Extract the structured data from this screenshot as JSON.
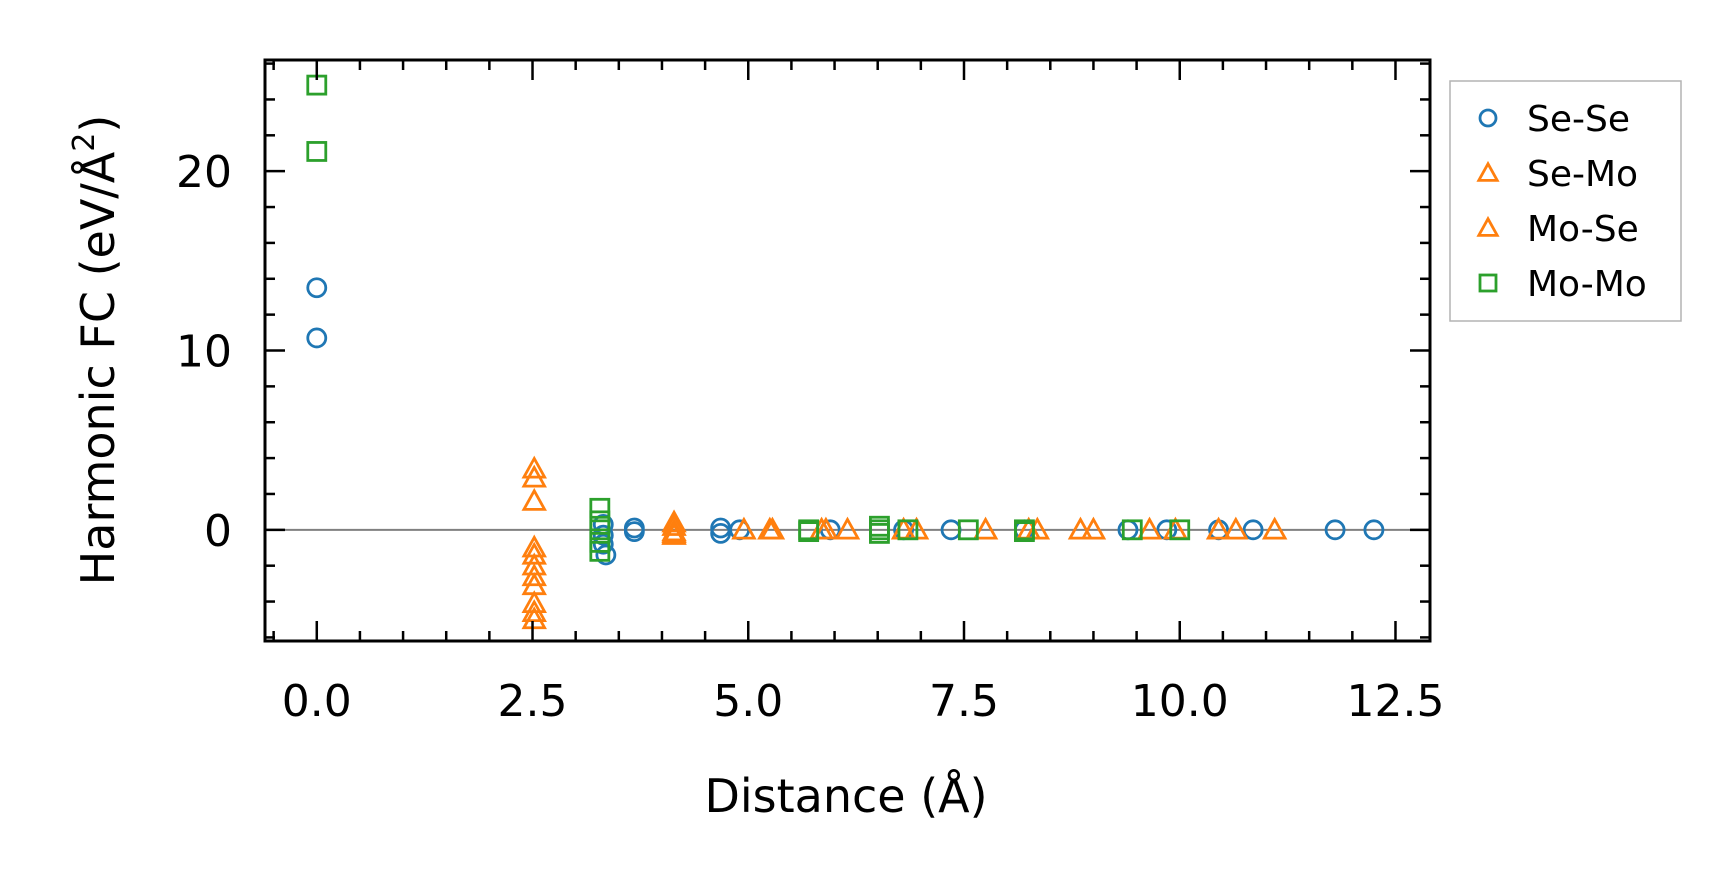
{
  "chart_data": {
    "type": "scatter",
    "title": "",
    "xlabel": "Distance (Å)",
    "ylabel_main": "Harmonic FC (eV/Å",
    "ylabel_sup": "2",
    "ylabel_close": ")",
    "xlim": [
      -0.6,
      12.9
    ],
    "ylim": [
      -6.2,
      26.2
    ],
    "xticks": [
      0.0,
      2.5,
      5.0,
      7.5,
      10.0,
      12.5
    ],
    "xtick_labels": [
      "0.0",
      "2.5",
      "5.0",
      "7.5",
      "10.0",
      "12.5"
    ],
    "yticks": [
      0,
      10,
      20
    ],
    "ytick_labels": [
      "0",
      "10",
      "20"
    ],
    "zero_line": true,
    "legend_placement": "outside-right-top",
    "series": [
      {
        "name": "Se-Se",
        "marker": "circle",
        "color": "#1f77b4",
        "x": [
          0.0,
          0.0,
          3.32,
          3.32,
          3.32,
          3.35,
          3.68,
          3.68,
          4.68,
          4.68,
          4.9,
          5.95,
          6.8,
          7.35,
          8.2,
          9.4,
          9.85,
          10.45,
          10.85,
          11.8,
          12.25
        ],
        "y": [
          13.5,
          10.7,
          0.3,
          -0.3,
          -0.8,
          -1.4,
          0.1,
          -0.1,
          0.1,
          -0.2,
          0.0,
          0.0,
          0.0,
          0.0,
          0.0,
          0.0,
          0.0,
          0.0,
          0.0,
          0.0,
          0.0
        ]
      },
      {
        "name": "Se-Mo",
        "marker": "triangle",
        "color": "#ff7f0e",
        "x": [
          2.52,
          2.52,
          2.52,
          2.52,
          2.52,
          2.52,
          2.52,
          4.14,
          4.14,
          4.14,
          4.95,
          5.25,
          5.85,
          6.15,
          6.95,
          7.75,
          8.35,
          8.85,
          9.65,
          10.45,
          10.65,
          11.1
        ],
        "y": [
          3.4,
          2.9,
          1.6,
          -1.4,
          -2.6,
          -4.1,
          -5.0,
          0.2,
          -0.1,
          -0.3,
          0.0,
          0.0,
          0.0,
          0.0,
          0.0,
          0.0,
          0.0,
          0.0,
          0.0,
          0.0,
          0.0,
          0.0
        ]
      },
      {
        "name": "Mo-Se",
        "marker": "triangle",
        "color": "#ff7f0e",
        "x": [
          2.52,
          2.52,
          2.52,
          2.52,
          4.14,
          4.14,
          5.28,
          5.9,
          6.8,
          8.25,
          9.0,
          9.95
        ],
        "y": [
          -1.0,
          -2.0,
          -3.1,
          -4.6,
          0.4,
          -0.2,
          0.0,
          0.0,
          0.0,
          0.0,
          0.0,
          0.0
        ]
      },
      {
        "name": "Mo-Mo",
        "marker": "square",
        "color": "#2ca02c",
        "x": [
          0.0,
          0.0,
          3.28,
          3.28,
          3.28,
          3.28,
          3.28,
          5.7,
          5.7,
          6.52,
          6.52,
          6.52,
          6.85,
          7.55,
          8.2,
          8.2,
          9.45,
          10.0
        ],
        "y": [
          24.8,
          21.1,
          1.2,
          0.5,
          0.0,
          -0.7,
          -1.2,
          0.0,
          -0.1,
          0.2,
          0.0,
          -0.2,
          0.0,
          0.0,
          0.0,
          -0.1,
          0.0,
          0.0
        ]
      }
    ]
  }
}
